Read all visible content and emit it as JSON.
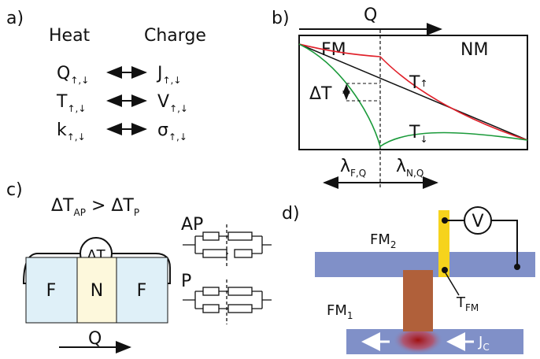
{
  "panels": {
    "a": {
      "label": "a)",
      "heat": "Heat",
      "charge": "Charge",
      "rows": [
        {
          "left": {
            "base": "Q",
            "sub": "↑,↓"
          },
          "right": {
            "base": "J",
            "sub": "↑,↓"
          }
        },
        {
          "left": {
            "base": "T",
            "sub": "↑,↓"
          },
          "right": {
            "base": "V",
            "sub": "↑,↓"
          }
        },
        {
          "left": {
            "base": "k",
            "sub": "↑,↓"
          },
          "right": {
            "base": "σ",
            "sub": "↑,↓"
          }
        }
      ]
    },
    "b": {
      "label": "b)",
      "flow": "Q",
      "left_region": "FM",
      "right_region": "NM",
      "delta": "ΔT",
      "t_up": {
        "base": "T",
        "sub": "↑"
      },
      "t_down": {
        "base": "T",
        "sub": "↓"
      },
      "lambda_f": {
        "base": "λ",
        "sub": "F,Q"
      },
      "lambda_n": {
        "base": "λ",
        "sub": "N,Q"
      }
    },
    "c": {
      "label": "c)",
      "relation": {
        "a": "ΔT",
        "a_sub": "AP",
        "op": " > ",
        "b": "ΔT",
        "b_sub": "P"
      },
      "meter": "ΔT",
      "layers": [
        "F",
        "N",
        "F"
      ],
      "flow": "Q",
      "ap": "AP",
      "p": "P"
    },
    "d": {
      "label": "d)",
      "meter": "V",
      "fm2": {
        "base": "FM",
        "sub": "2"
      },
      "fm1": {
        "base": "FM",
        "sub": "1"
      },
      "tfm": {
        "base": "T",
        "sub": "FM"
      },
      "jc": {
        "base": "J",
        "sub": "C"
      }
    }
  }
}
